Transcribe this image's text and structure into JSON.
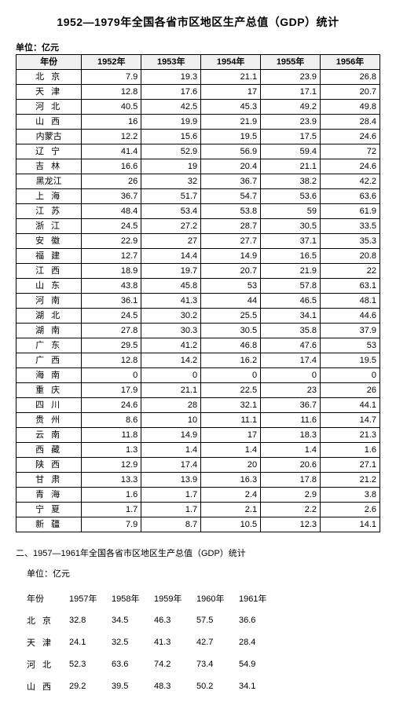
{
  "title": "1952—1979年全国各省市区地区生产总值（GDP）统计",
  "unit_label": "单位：亿元",
  "main_table": {
    "type": "table",
    "header_bg": "#f0f0f0",
    "border_color": "#000000",
    "columns": [
      "年份",
      "1952年",
      "1953年",
      "1954年",
      "1955年",
      "1956年"
    ],
    "col_widths_pct": [
      18,
      16.4,
      16.4,
      16.4,
      16.4,
      16.4
    ],
    "rows": [
      {
        "prov": "北 京",
        "v": [
          "7.9",
          "19.3",
          "21.1",
          "23.9",
          "26.8"
        ]
      },
      {
        "prov": "天 津",
        "v": [
          "12.8",
          "17.6",
          "17",
          "17.1",
          "20.7"
        ]
      },
      {
        "prov": "河 北",
        "v": [
          "40.5",
          "42.5",
          "45.3",
          "49.2",
          "49.8"
        ]
      },
      {
        "prov": "山 西",
        "v": [
          "16",
          "19.9",
          "21.9",
          "23.9",
          "28.4"
        ]
      },
      {
        "prov": "内蒙古",
        "v": [
          "12.2",
          "15.6",
          "19.5",
          "17.5",
          "24.6"
        ]
      },
      {
        "prov": "辽 宁",
        "v": [
          "41.4",
          "52.9",
          "56.9",
          "59.4",
          "72"
        ]
      },
      {
        "prov": "吉 林",
        "v": [
          "16.6",
          "19",
          "20.4",
          "21.1",
          "24.6"
        ]
      },
      {
        "prov": "黑龙江",
        "v": [
          "26",
          "32",
          "36.7",
          "38.2",
          "42.2"
        ]
      },
      {
        "prov": "上 海",
        "v": [
          "36.7",
          "51.7",
          "54.7",
          "53.6",
          "63.6"
        ]
      },
      {
        "prov": "江 苏",
        "v": [
          "48.4",
          "53.4",
          "53.8",
          "59",
          "61.9"
        ]
      },
      {
        "prov": "浙 江",
        "v": [
          "24.5",
          "27.2",
          "28.7",
          "30.5",
          "33.5"
        ]
      },
      {
        "prov": "安 徽",
        "v": [
          "22.9",
          "27",
          "27.7",
          "37.1",
          "35.3"
        ]
      },
      {
        "prov": "福 建",
        "v": [
          "12.7",
          "14.4",
          "14.9",
          "16.5",
          "20.8"
        ]
      },
      {
        "prov": "江 西",
        "v": [
          "18.9",
          "19.7",
          "20.7",
          "21.9",
          "22"
        ]
      },
      {
        "prov": "山 东",
        "v": [
          "43.8",
          "45.8",
          "53",
          "57.8",
          "63.1"
        ]
      },
      {
        "prov": "河 南",
        "v": [
          "36.1",
          "41.3",
          "44",
          "46.5",
          "48.1"
        ]
      },
      {
        "prov": "湖 北",
        "v": [
          "24.5",
          "30.2",
          "25.5",
          "34.1",
          "44.6"
        ]
      },
      {
        "prov": "湖 南",
        "v": [
          "27.8",
          "30.3",
          "30.5",
          "35.8",
          "37.9"
        ]
      },
      {
        "prov": "广 东",
        "v": [
          "29.5",
          "41.2",
          "46.8",
          "47.6",
          "53"
        ]
      },
      {
        "prov": "广 西",
        "v": [
          "12.8",
          "14.2",
          "16.2",
          "17.4",
          "19.5"
        ]
      },
      {
        "prov": "海 南",
        "v": [
          "0",
          "0",
          "0",
          "0",
          "0"
        ]
      },
      {
        "prov": "重 庆",
        "v": [
          "17.9",
          "21.1",
          "22.5",
          "23",
          "26"
        ]
      },
      {
        "prov": "四 川",
        "v": [
          "24.6",
          "28",
          "32.1",
          "36.7",
          "44.1"
        ]
      },
      {
        "prov": "贵 州",
        "v": [
          "8.6",
          "10",
          "11.1",
          "11.6",
          "14.7"
        ]
      },
      {
        "prov": "云 南",
        "v": [
          "11.8",
          "14.9",
          "17",
          "18.3",
          "21.3"
        ]
      },
      {
        "prov": "西 藏",
        "v": [
          "1.3",
          "1.4",
          "1.4",
          "1.4",
          "1.6"
        ]
      },
      {
        "prov": "陕 西",
        "v": [
          "12.9",
          "17.4",
          "20",
          "20.6",
          "27.1"
        ]
      },
      {
        "prov": "甘 肃",
        "v": [
          "13.3",
          "13.9",
          "16.3",
          "17.8",
          "21.2"
        ]
      },
      {
        "prov": "青 海",
        "v": [
          "1.6",
          "1.7",
          "2.4",
          "2.9",
          "3.8"
        ]
      },
      {
        "prov": "宁 夏",
        "v": [
          "1.7",
          "1.7",
          "2.1",
          "2.2",
          "2.6"
        ]
      },
      {
        "prov": "新 疆",
        "v": [
          "7.9",
          "8.7",
          "10.5",
          "12.3",
          "14.1"
        ]
      }
    ]
  },
  "section2": {
    "title": "二、1957—1961年全国各省市区地区生产总值（GDP）统计",
    "unit_label": "单位：亿元",
    "columns": [
      "年份",
      "1957年",
      "1958年",
      "1959年",
      "1960年",
      "1961年"
    ],
    "rows": [
      {
        "prov": "北 京",
        "v": [
          "32.8",
          "34.5",
          "46.3",
          "57.5",
          "36.6"
        ]
      },
      {
        "prov": "天 津",
        "v": [
          "24.1",
          "32.5",
          "41.3",
          "42.7",
          "28.4"
        ]
      },
      {
        "prov": "河 北",
        "v": [
          "52.3",
          "63.6",
          "74.2",
          "73.4",
          "54.9"
        ]
      },
      {
        "prov": "山 西",
        "v": [
          "29.2",
          "39.5",
          "48.3",
          "50.2",
          "34.1"
        ]
      }
    ]
  }
}
